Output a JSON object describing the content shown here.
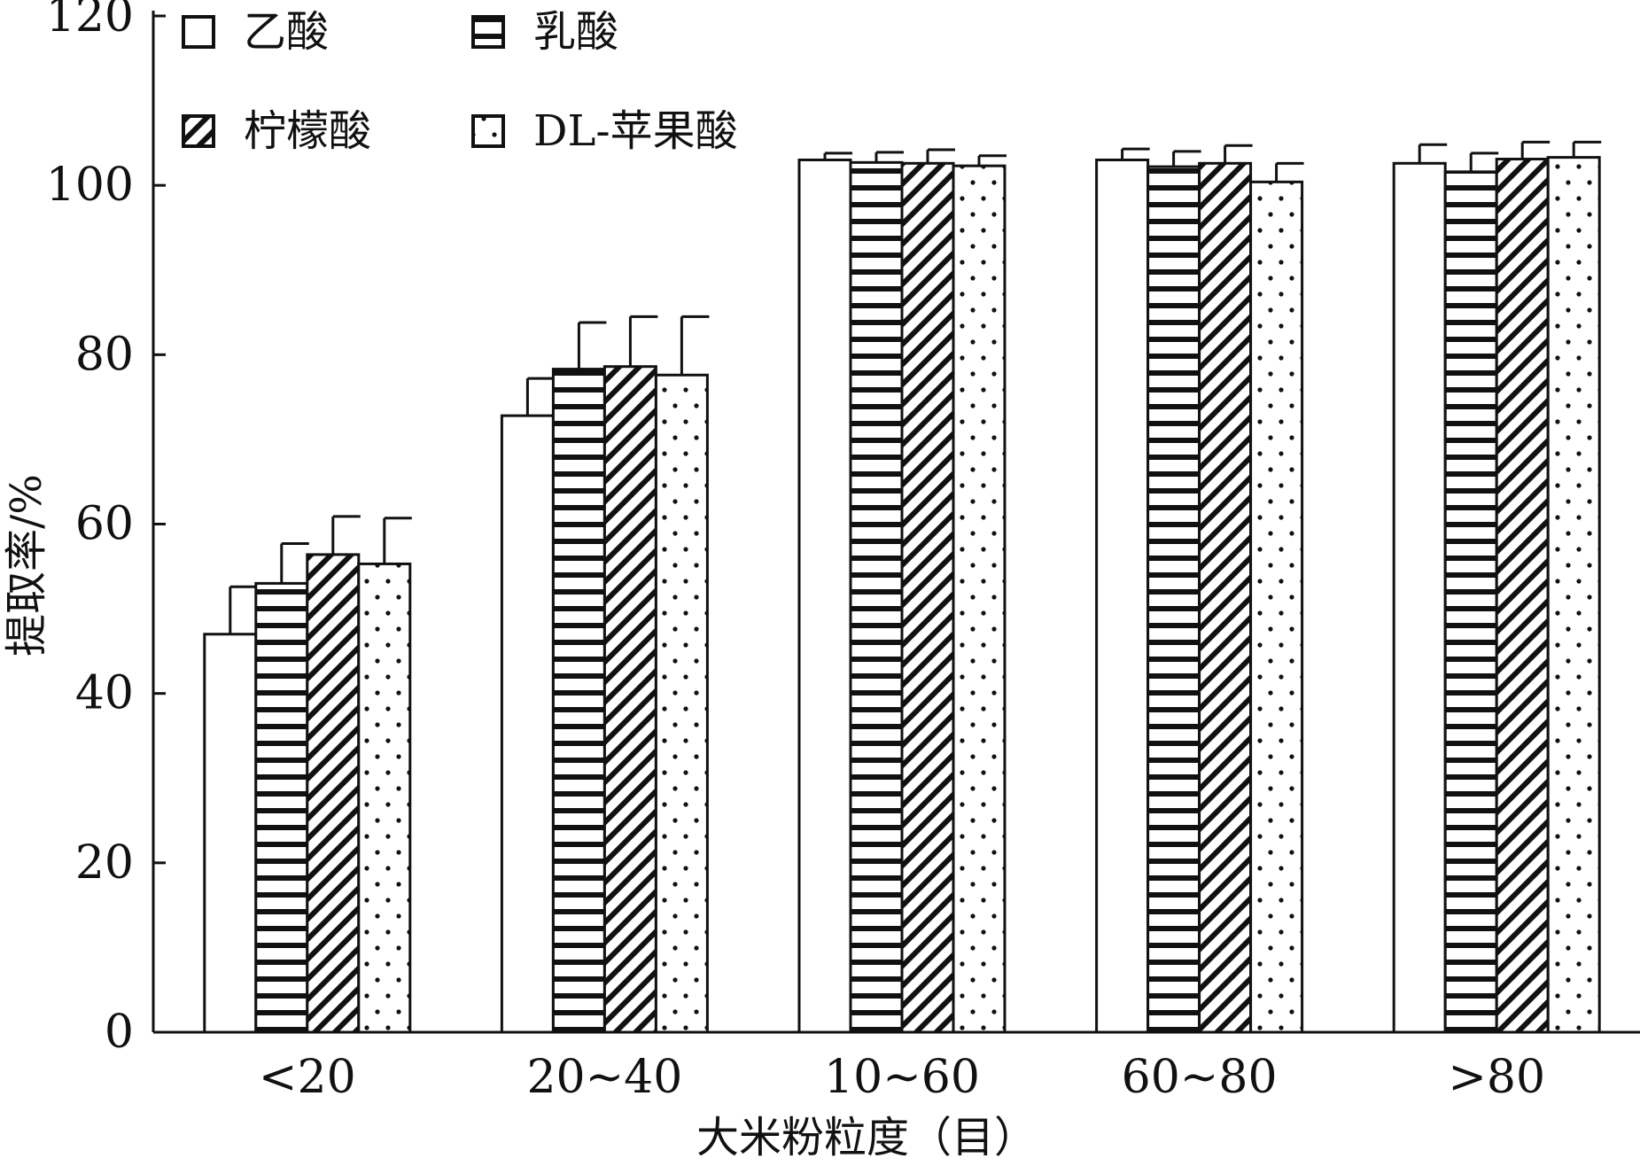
{
  "chart_data": {
    "type": "bar",
    "title": "",
    "xlabel": "大米粉粒度（目）",
    "ylabel": "提取率/%",
    "ylim": [
      0,
      120
    ],
    "yticks": [
      0,
      20,
      40,
      60,
      80,
      100,
      120
    ],
    "categories": [
      "<20",
      "20~40",
      "10~60",
      "60~80",
      ">80"
    ],
    "grid": false,
    "legend_position": "top-left",
    "legend_order": [
      0,
      2,
      1,
      3
    ],
    "series": [
      {
        "name": "乙酸",
        "pattern": "blank",
        "values": [
          47,
          72.8,
          103,
          103,
          102.6
        ],
        "errors": [
          5.6,
          4.4,
          0.8,
          1.3,
          2.2
        ]
      },
      {
        "name": "乳酸",
        "pattern": "horizontal",
        "values": [
          53,
          78.3,
          102.7,
          102.2,
          101.6
        ],
        "errors": [
          4.7,
          5.5,
          1.2,
          1.8,
          2.2
        ]
      },
      {
        "name": "柠檬酸",
        "pattern": "diagonal",
        "values": [
          56.4,
          78.6,
          102.6,
          102.6,
          103.1
        ],
        "errors": [
          4.5,
          5.9,
          1.6,
          2.1,
          2.0
        ]
      },
      {
        "name": "DL-苹果酸",
        "pattern": "dots",
        "values": [
          55.3,
          77.6,
          102.3,
          100.4,
          103.3
        ],
        "errors": [
          5.4,
          6.9,
          1.2,
          2.2,
          1.8
        ]
      }
    ]
  }
}
